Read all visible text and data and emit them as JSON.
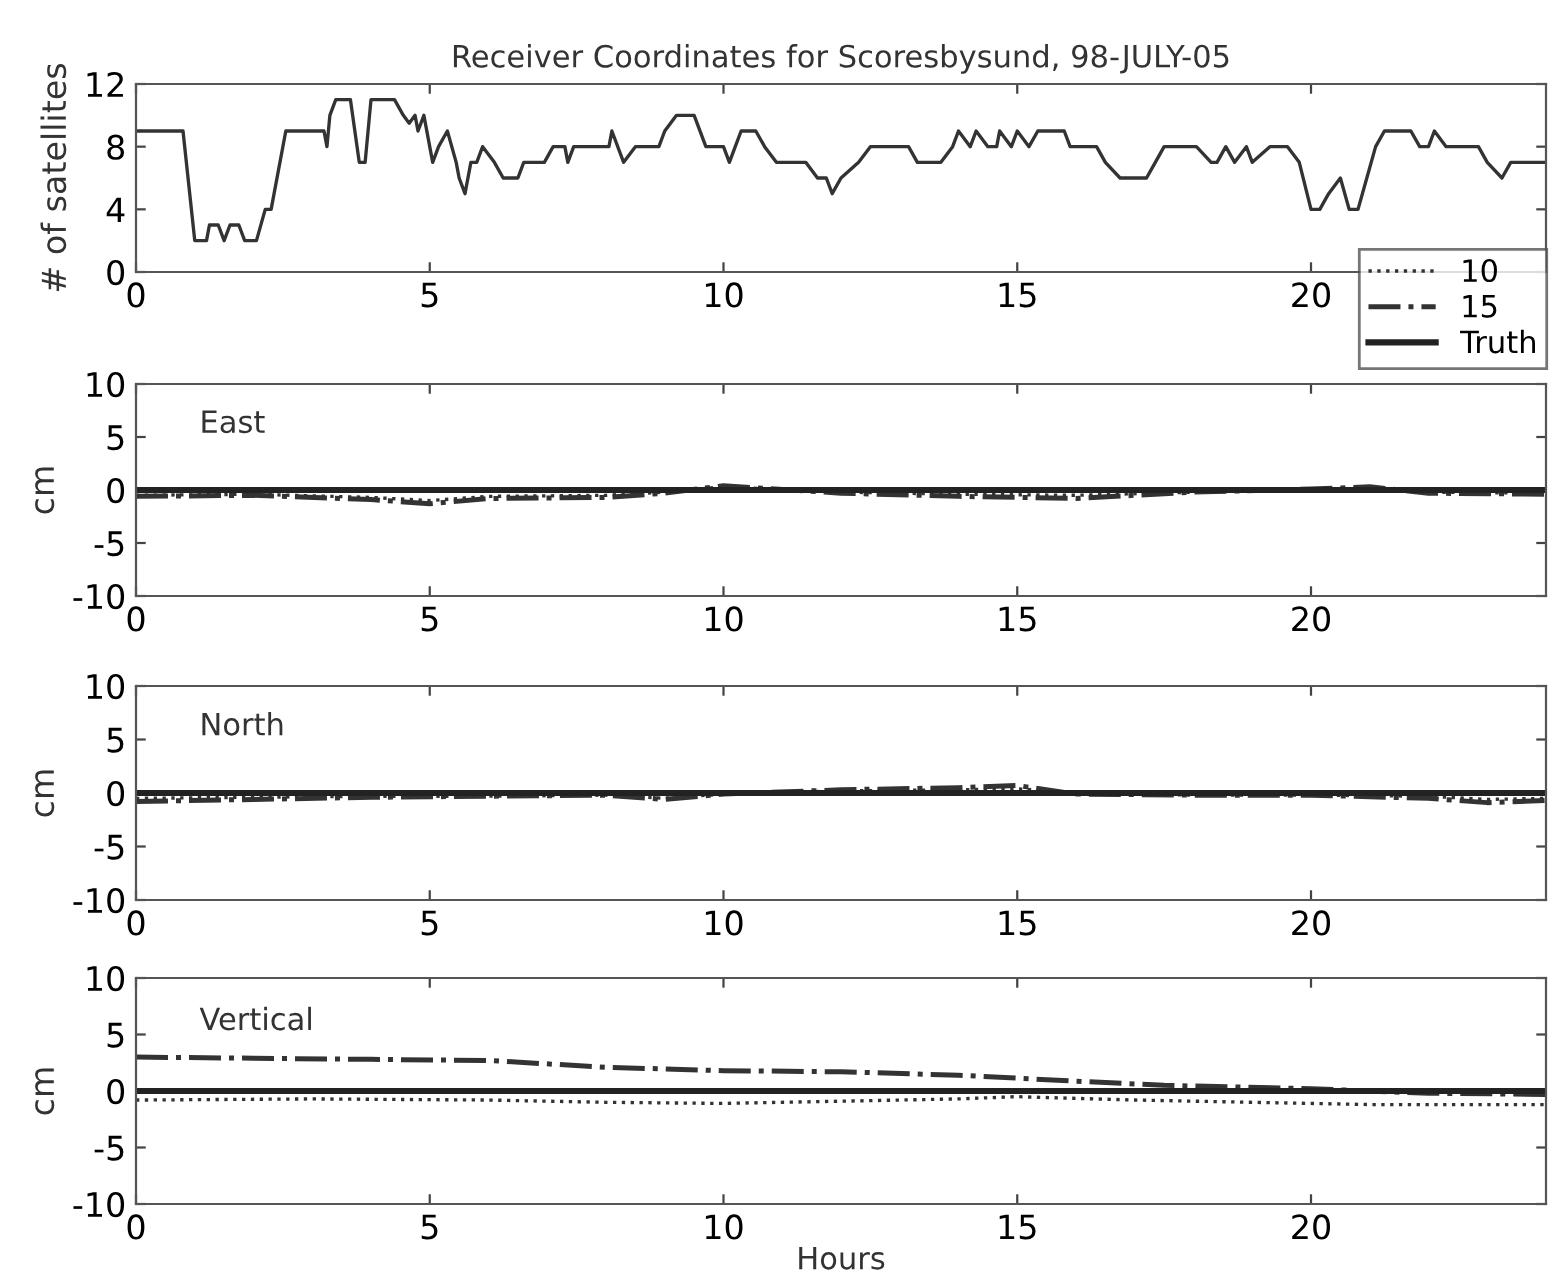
{
  "chart_data": [
    {
      "type": "line",
      "title": "Receiver Coordinates for Scoresbysund, 98-JULY-05",
      "ylabel": "# of satellites",
      "xlim": [
        0,
        24
      ],
      "xticks": [
        0,
        5,
        10,
        15,
        20
      ],
      "ylim": [
        0,
        12
      ],
      "yticks": [
        0,
        4,
        8,
        12
      ],
      "grid": false,
      "legend": false,
      "series": [
        {
          "color": "#333333",
          "line_style": "solid",
          "x": [
            0,
            0.8,
            1.0,
            1.2,
            1.25,
            1.4,
            1.5,
            1.6,
            1.75,
            1.85,
            2.05,
            2.2,
            2.3,
            2.55,
            3.2,
            3.25,
            3.3,
            3.4,
            3.65,
            3.8,
            3.9,
            4.0,
            4.4,
            4.55,
            4.65,
            4.75,
            4.8,
            4.9,
            5.05,
            5.15,
            5.3,
            5.45,
            5.5,
            5.6,
            5.7,
            5.8,
            5.9,
            6.1,
            6.25,
            6.5,
            6.6,
            6.95,
            7.1,
            7.3,
            7.35,
            7.45,
            8.05,
            8.1,
            8.3,
            8.5,
            8.9,
            9.0,
            9.2,
            9.5,
            9.7,
            10.0,
            10.1,
            10.2,
            10.3,
            10.55,
            10.7,
            10.9,
            11.4,
            11.6,
            11.75,
            11.85,
            12.0,
            12.3,
            12.5,
            13.15,
            13.3,
            13.7,
            13.9,
            14.0,
            14.2,
            14.3,
            14.5,
            14.65,
            14.7,
            14.9,
            15.0,
            15.2,
            15.35,
            15.8,
            15.9,
            16.35,
            16.5,
            16.75,
            17.2,
            17.35,
            17.5,
            18.05,
            18.3,
            18.4,
            18.55,
            18.7,
            18.9,
            19.0,
            19.3,
            19.6,
            19.8,
            20.0,
            20.15,
            20.3,
            20.5,
            20.65,
            20.8,
            20.95,
            21.1,
            21.25,
            21.7,
            21.85,
            22.0,
            22.1,
            22.3,
            22.85,
            23.0,
            23.25,
            23.4,
            23.65,
            24
          ],
          "values": [
            9,
            9,
            2,
            2,
            3,
            3,
            2,
            3,
            3,
            2,
            2,
            4,
            4,
            9,
            9,
            8,
            10,
            11,
            11,
            7,
            7,
            11,
            11,
            10,
            9.5,
            10,
            9,
            10,
            7,
            8,
            9,
            7,
            6,
            5,
            7,
            7,
            8,
            7,
            6,
            6,
            7,
            7,
            8,
            8,
            7,
            8,
            8,
            9,
            7,
            8,
            8,
            9,
            10,
            10,
            8,
            8,
            7,
            8,
            9,
            9,
            8,
            7,
            7,
            6,
            6,
            5,
            6,
            7,
            8,
            8,
            7,
            7,
            8,
            9,
            8,
            9,
            8,
            8,
            9,
            8,
            9,
            8,
            9,
            9,
            8,
            8,
            7,
            6,
            6,
            7,
            8,
            8,
            7,
            7,
            8,
            7,
            8,
            7,
            8,
            8,
            7,
            4,
            4,
            5,
            6,
            4,
            4,
            6,
            8,
            9,
            9,
            8,
            8,
            9,
            8,
            8,
            7,
            6,
            7,
            7,
            7
          ]
        }
      ]
    },
    {
      "type": "line",
      "ylabel": "cm",
      "annotations": [
        "East"
      ],
      "xlim": [
        0,
        24
      ],
      "xticks": [
        0,
        5,
        10,
        15,
        20
      ],
      "ylim": [
        -10,
        10
      ],
      "yticks": [
        -10,
        -5,
        0,
        5,
        10
      ],
      "grid": false,
      "legend": "top right",
      "series": [
        {
          "name": "10",
          "color": "#333333",
          "line_style": "dotted",
          "x": [
            0,
            2,
            4,
            5,
            6,
            8,
            9,
            10,
            12,
            14,
            16,
            18,
            20,
            21,
            22,
            24
          ],
          "values": [
            -0.5,
            -0.4,
            -0.7,
            -1.0,
            -0.6,
            -0.5,
            -0.2,
            0.3,
            -0.2,
            -0.4,
            -0.5,
            -0.2,
            0,
            0.2,
            -0.2,
            -0.3
          ]
        },
        {
          "name": "15",
          "color": "#333333",
          "line_style": "dashdot",
          "x": [
            0,
            2,
            4,
            5,
            6,
            8,
            9,
            10,
            12,
            14,
            16,
            18,
            20,
            21,
            22,
            24
          ],
          "values": [
            -0.6,
            -0.5,
            -0.9,
            -1.3,
            -0.8,
            -0.7,
            -0.3,
            0.4,
            -0.3,
            -0.6,
            -0.8,
            -0.2,
            0.1,
            0.3,
            -0.3,
            -0.4
          ]
        },
        {
          "name": "Truth",
          "color": "#222222",
          "line_style": "solid",
          "x": [
            0,
            24
          ],
          "values": [
            0,
            0
          ]
        }
      ]
    },
    {
      "type": "line",
      "ylabel": "cm",
      "annotations": [
        "North"
      ],
      "xlim": [
        0,
        24
      ],
      "xticks": [
        0,
        5,
        10,
        15,
        20
      ],
      "ylim": [
        -10,
        10
      ],
      "yticks": [
        -10,
        -5,
        0,
        5,
        10
      ],
      "grid": false,
      "legend": false,
      "series": [
        {
          "color": "#333333",
          "line_style": "dotted",
          "x": [
            0,
            2,
            4,
            6,
            8,
            9,
            10,
            12,
            14,
            15,
            16,
            18,
            20,
            22,
            23,
            24
          ],
          "values": [
            -0.5,
            -0.4,
            -0.3,
            -0.3,
            -0.2,
            -0.5,
            -0.1,
            0.2,
            0.3,
            0.4,
            0,
            -0.2,
            -0.2,
            -0.3,
            -0.6,
            -0.5
          ]
        },
        {
          "color": "#333333",
          "line_style": "dashdot",
          "x": [
            0,
            2,
            4,
            6,
            8,
            9,
            10,
            12,
            14,
            15,
            16,
            18,
            20,
            22,
            23,
            24
          ],
          "values": [
            -0.8,
            -0.6,
            -0.4,
            -0.3,
            -0.2,
            -0.6,
            -0.1,
            0.3,
            0.5,
            0.7,
            -0.1,
            -0.2,
            -0.2,
            -0.5,
            -0.9,
            -0.7
          ]
        },
        {
          "color": "#222222",
          "line_style": "solid",
          "x": [
            0,
            24
          ],
          "values": [
            0,
            0
          ]
        }
      ]
    },
    {
      "type": "line",
      "ylabel": "cm",
      "xlabel": "Hours",
      "annotations": [
        "Vertical"
      ],
      "xlim": [
        0,
        24
      ],
      "xticks": [
        0,
        5,
        10,
        15,
        20
      ],
      "ylim": [
        -10,
        10
      ],
      "yticks": [
        -10,
        -5,
        0,
        5,
        10
      ],
      "grid": false,
      "legend": false,
      "series": [
        {
          "color": "#333333",
          "line_style": "dotted",
          "x": [
            0,
            3,
            6,
            8,
            10,
            12,
            14,
            15,
            17,
            19,
            21,
            24
          ],
          "values": [
            -0.8,
            -0.7,
            -0.8,
            -1.0,
            -1.1,
            -0.9,
            -0.7,
            -0.5,
            -0.8,
            -1.0,
            -1.2,
            -1.2
          ]
        },
        {
          "color": "#333333",
          "line_style": "dashdot",
          "x": [
            0,
            2,
            4,
            6,
            8,
            10,
            12,
            14,
            15.5,
            17.5,
            20,
            22,
            24
          ],
          "values": [
            3.0,
            2.9,
            2.8,
            2.7,
            2.1,
            1.8,
            1.7,
            1.4,
            1.0,
            0.5,
            0.2,
            -0.2,
            -0.3
          ]
        },
        {
          "color": "#222222",
          "line_style": "solid",
          "x": [
            0,
            24
          ],
          "values": [
            0,
            0
          ]
        }
      ]
    }
  ]
}
